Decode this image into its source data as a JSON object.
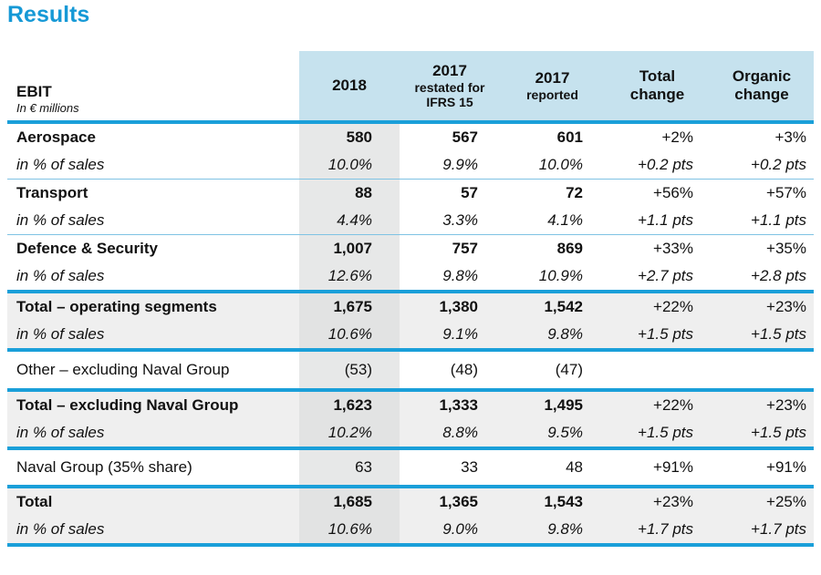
{
  "title": "Results",
  "header": {
    "label_main": "EBIT",
    "label_sub": "In € millions",
    "col_2018": "2018",
    "col_2017r_year": "2017",
    "col_2017r_l1": "restated for",
    "col_2017r_l2": "IFRS 15",
    "col_2017_year": "2017",
    "col_2017_sub": "reported",
    "col_total_l1": "Total",
    "col_total_l2": "change",
    "col_organic_l1": "Organic",
    "col_organic_l2": "change"
  },
  "rows": [
    {
      "label": "Aerospace",
      "v2018": "580",
      "v2017r": "567",
      "v2017": "601",
      "total": "+2%",
      "organic": "+3%"
    },
    {
      "label": "in % of sales",
      "v2018": "10.0%",
      "v2017r": "9.9%",
      "v2017": "10.0%",
      "total": "+0.2 pts",
      "organic": "+0.2 pts"
    },
    {
      "label": "Transport",
      "v2018": "88",
      "v2017r": "57",
      "v2017": "72",
      "total": "+56%",
      "organic": "+57%"
    },
    {
      "label": "in % of sales",
      "v2018": "4.4%",
      "v2017r": "3.3%",
      "v2017": "4.1%",
      "total": "+1.1 pts",
      "organic": "+1.1 pts"
    },
    {
      "label": "Defence & Security",
      "v2018": "1,007",
      "v2017r": "757",
      "v2017": "869",
      "total": "+33%",
      "organic": "+35%"
    },
    {
      "label": "in % of sales",
      "v2018": "12.6%",
      "v2017r": "9.8%",
      "v2017": "10.9%",
      "total": "+2.7 pts",
      "organic": "+2.8 pts"
    },
    {
      "label": "Total – operating segments",
      "v2018": "1,675",
      "v2017r": "1,380",
      "v2017": "1,542",
      "total": "+22%",
      "organic": "+23%"
    },
    {
      "label": "in % of sales",
      "v2018": "10.6%",
      "v2017r": "9.1%",
      "v2017": "9.8%",
      "total": "+1.5 pts",
      "organic": "+1.5 pts"
    },
    {
      "label": "Other – excluding Naval Group",
      "v2018": "(53)",
      "v2017r": "(48)",
      "v2017": "(47)",
      "total": "",
      "organic": ""
    },
    {
      "label": "Total – excluding Naval Group",
      "v2018": "1,623",
      "v2017r": "1,333",
      "v2017": "1,495",
      "total": "+22%",
      "organic": "+23%"
    },
    {
      "label": "in % of sales",
      "v2018": "10.2%",
      "v2017r": "8.8%",
      "v2017": "9.5%",
      "total": "+1.5 pts",
      "organic": "+1.5 pts"
    },
    {
      "label": "Naval Group (35% share)",
      "v2018": "63",
      "v2017r": "33",
      "v2017": "48",
      "total": "+91%",
      "organic": "+91%"
    },
    {
      "label": "Total",
      "v2018": "1,685",
      "v2017r": "1,365",
      "v2017": "1,543",
      "total": "+23%",
      "organic": "+25%"
    },
    {
      "label": "in % of sales",
      "v2018": "10.6%",
      "v2017r": "9.0%",
      "v2017": "9.8%",
      "total": "+1.7 pts",
      "organic": "+1.7 pts"
    }
  ]
}
